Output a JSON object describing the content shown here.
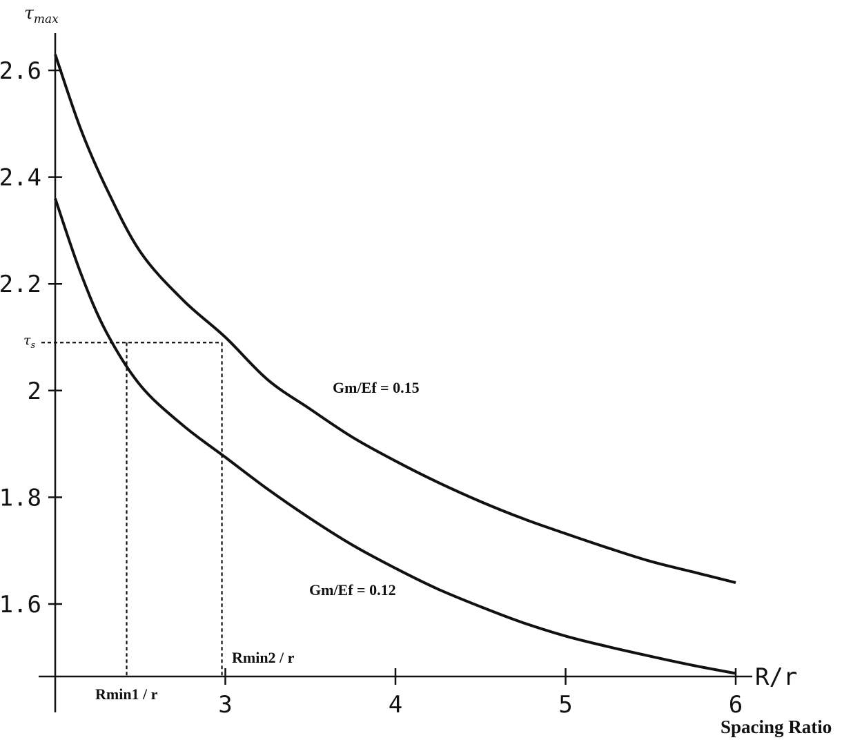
{
  "chart_data": {
    "type": "line",
    "title": "",
    "ylabel": "τmax",
    "ylabel_sym": "τ",
    "ylabel_sub": "max",
    "xlabel": "R/r",
    "xlabel_secondary": "Spacing Ratio",
    "xlim": [
      2.0,
      6.0
    ],
    "ylim": [
      1.47,
      2.66
    ],
    "xticks": [
      3,
      4,
      5,
      6
    ],
    "xtick_labels": [
      "3",
      "4",
      "5",
      "6"
    ],
    "yticks": [
      1.6,
      1.8,
      2.0,
      2.2,
      2.4,
      2.6
    ],
    "ytick_labels": [
      "1.6",
      "1.8",
      "2",
      "2.2",
      "2.4",
      "2.6"
    ],
    "grid": false,
    "series": [
      {
        "name": "Gm/Ef = 0.15",
        "x": [
          2.0,
          2.15,
          2.3,
          2.5,
          2.75,
          3.0,
          3.25,
          3.5,
          3.75,
          4.0,
          4.25,
          4.5,
          4.75,
          5.0,
          5.25,
          5.5,
          5.75,
          6.0
        ],
        "y": [
          2.63,
          2.49,
          2.38,
          2.26,
          2.17,
          2.1,
          2.02,
          1.965,
          1.912,
          1.868,
          1.828,
          1.792,
          1.76,
          1.732,
          1.705,
          1.68,
          1.66,
          1.64
        ]
      },
      {
        "name": "Gm/Ef = 0.12",
        "x": [
          2.0,
          2.15,
          2.3,
          2.5,
          2.75,
          3.0,
          3.25,
          3.5,
          3.75,
          4.0,
          4.25,
          4.5,
          4.75,
          5.0,
          5.25,
          5.5,
          5.75,
          6.0
        ],
        "y": [
          2.36,
          2.22,
          2.11,
          2.01,
          1.935,
          1.875,
          1.815,
          1.76,
          1.71,
          1.667,
          1.628,
          1.595,
          1.565,
          1.54,
          1.52,
          1.502,
          1.485,
          1.47
        ]
      }
    ],
    "reference": {
      "tau_s_sym": "τ",
      "tau_s_sub": "s",
      "tau_s": 2.09,
      "rmin1_x": 2.42,
      "rmin2_x": 2.98,
      "rmin1_label": "Rmin1 / r",
      "rmin2_label": "Rmin2 / r"
    }
  }
}
